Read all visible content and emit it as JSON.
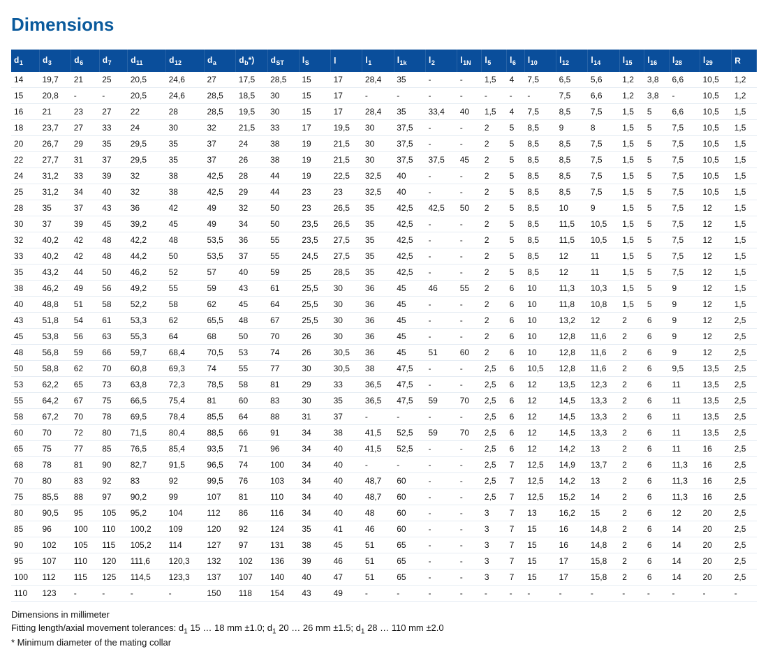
{
  "title": "Dimensions",
  "table": {
    "columns": [
      {
        "base": "d",
        "sub": "1",
        "suffix": ""
      },
      {
        "base": "d",
        "sub": "3",
        "suffix": ""
      },
      {
        "base": "d",
        "sub": "6",
        "suffix": ""
      },
      {
        "base": "d",
        "sub": "7",
        "suffix": ""
      },
      {
        "base": "d",
        "sub": "11",
        "suffix": ""
      },
      {
        "base": "d",
        "sub": "12",
        "suffix": ""
      },
      {
        "base": "d",
        "sub": "a",
        "suffix": ""
      },
      {
        "base": "d",
        "sub": "b",
        "suffix": "*)"
      },
      {
        "base": "d",
        "sub": "ST",
        "suffix": ""
      },
      {
        "base": "l",
        "sub": "S",
        "suffix": ""
      },
      {
        "base": "l",
        "sub": "",
        "suffix": ""
      },
      {
        "base": "l",
        "sub": "1",
        "suffix": ""
      },
      {
        "base": "l",
        "sub": "1k",
        "suffix": ""
      },
      {
        "base": "l",
        "sub": "2",
        "suffix": ""
      },
      {
        "base": "l",
        "sub": "1N",
        "suffix": ""
      },
      {
        "base": "l",
        "sub": "5",
        "suffix": ""
      },
      {
        "base": "l",
        "sub": "6",
        "suffix": ""
      },
      {
        "base": "l",
        "sub": "10",
        "suffix": ""
      },
      {
        "base": "l",
        "sub": "12",
        "suffix": ""
      },
      {
        "base": "l",
        "sub": "14",
        "suffix": ""
      },
      {
        "base": "l",
        "sub": "15",
        "suffix": ""
      },
      {
        "base": "l",
        "sub": "16",
        "suffix": ""
      },
      {
        "base": "l",
        "sub": "28",
        "suffix": ""
      },
      {
        "base": "l",
        "sub": "29",
        "suffix": ""
      },
      {
        "base": "R",
        "sub": "",
        "suffix": ""
      }
    ],
    "rows": [
      [
        "14",
        "19,7",
        "21",
        "25",
        "20,5",
        "24,6",
        "27",
        "17,5",
        "28,5",
        "15",
        "17",
        "28,4",
        "35",
        "-",
        "-",
        "1,5",
        "4",
        "7,5",
        "6,5",
        "5,6",
        "1,2",
        "3,8",
        "6,6",
        "10,5",
        "1,2"
      ],
      [
        "15",
        "20,8",
        "-",
        "-",
        "20,5",
        "24,6",
        "28,5",
        "18,5",
        "30",
        "15",
        "17",
        "-",
        "-",
        "-",
        "-",
        "-",
        "-",
        "-",
        "7,5",
        "6,6",
        "1,2",
        "3,8",
        "-",
        "10,5",
        "1,2"
      ],
      [
        "16",
        "21",
        "23",
        "27",
        "22",
        "28",
        "28,5",
        "19,5",
        "30",
        "15",
        "17",
        "28,4",
        "35",
        "33,4",
        "40",
        "1,5",
        "4",
        "7,5",
        "8,5",
        "7,5",
        "1,5",
        "5",
        "6,6",
        "10,5",
        "1,5"
      ],
      [
        "18",
        "23,7",
        "27",
        "33",
        "24",
        "30",
        "32",
        "21,5",
        "33",
        "17",
        "19,5",
        "30",
        "37,5",
        "-",
        "-",
        "2",
        "5",
        "8,5",
        "9",
        "8",
        "1,5",
        "5",
        "7,5",
        "10,5",
        "1,5"
      ],
      [
        "20",
        "26,7",
        "29",
        "35",
        "29,5",
        "35",
        "37",
        "24",
        "38",
        "19",
        "21,5",
        "30",
        "37,5",
        "-",
        "-",
        "2",
        "5",
        "8,5",
        "8,5",
        "7,5",
        "1,5",
        "5",
        "7,5",
        "10,5",
        "1,5"
      ],
      [
        "22",
        "27,7",
        "31",
        "37",
        "29,5",
        "35",
        "37",
        "26",
        "38",
        "19",
        "21,5",
        "30",
        "37,5",
        "37,5",
        "45",
        "2",
        "5",
        "8,5",
        "8,5",
        "7,5",
        "1,5",
        "5",
        "7,5",
        "10,5",
        "1,5"
      ],
      [
        "24",
        "31,2",
        "33",
        "39",
        "32",
        "38",
        "42,5",
        "28",
        "44",
        "19",
        "22,5",
        "32,5",
        "40",
        "-",
        "-",
        "2",
        "5",
        "8,5",
        "8,5",
        "7,5",
        "1,5",
        "5",
        "7,5",
        "10,5",
        "1,5"
      ],
      [
        "25",
        "31,2",
        "34",
        "40",
        "32",
        "38",
        "42,5",
        "29",
        "44",
        "23",
        "23",
        "32,5",
        "40",
        "-",
        "-",
        "2",
        "5",
        "8,5",
        "8,5",
        "7,5",
        "1,5",
        "5",
        "7,5",
        "10,5",
        "1,5"
      ],
      [
        "28",
        "35",
        "37",
        "43",
        "36",
        "42",
        "49",
        "32",
        "50",
        "23",
        "26,5",
        "35",
        "42,5",
        "42,5",
        "50",
        "2",
        "5",
        "8,5",
        "10",
        "9",
        "1,5",
        "5",
        "7,5",
        "12",
        "1,5"
      ],
      [
        "30",
        "37",
        "39",
        "45",
        "39,2",
        "45",
        "49",
        "34",
        "50",
        "23,5",
        "26,5",
        "35",
        "42,5",
        "-",
        "-",
        "2",
        "5",
        "8,5",
        "11,5",
        "10,5",
        "1,5",
        "5",
        "7,5",
        "12",
        "1,5"
      ],
      [
        "32",
        "40,2",
        "42",
        "48",
        "42,2",
        "48",
        "53,5",
        "36",
        "55",
        "23,5",
        "27,5",
        "35",
        "42,5",
        "-",
        "-",
        "2",
        "5",
        "8,5",
        "11,5",
        "10,5",
        "1,5",
        "5",
        "7,5",
        "12",
        "1,5"
      ],
      [
        "33",
        "40,2",
        "42",
        "48",
        "44,2",
        "50",
        "53,5",
        "37",
        "55",
        "24,5",
        "27,5",
        "35",
        "42,5",
        "-",
        "-",
        "2",
        "5",
        "8,5",
        "12",
        "11",
        "1,5",
        "5",
        "7,5",
        "12",
        "1,5"
      ],
      [
        "35",
        "43,2",
        "44",
        "50",
        "46,2",
        "52",
        "57",
        "40",
        "59",
        "25",
        "28,5",
        "35",
        "42,5",
        "-",
        "-",
        "2",
        "5",
        "8,5",
        "12",
        "11",
        "1,5",
        "5",
        "7,5",
        "12",
        "1,5"
      ],
      [
        "38",
        "46,2",
        "49",
        "56",
        "49,2",
        "55",
        "59",
        "43",
        "61",
        "25,5",
        "30",
        "36",
        "45",
        "46",
        "55",
        "2",
        "6",
        "10",
        "11,3",
        "10,3",
        "1,5",
        "5",
        "9",
        "12",
        "1,5"
      ],
      [
        "40",
        "48,8",
        "51",
        "58",
        "52,2",
        "58",
        "62",
        "45",
        "64",
        "25,5",
        "30",
        "36",
        "45",
        "-",
        "-",
        "2",
        "6",
        "10",
        "11,8",
        "10,8",
        "1,5",
        "5",
        "9",
        "12",
        "1,5"
      ],
      [
        "43",
        "51,8",
        "54",
        "61",
        "53,3",
        "62",
        "65,5",
        "48",
        "67",
        "25,5",
        "30",
        "36",
        "45",
        "-",
        "-",
        "2",
        "6",
        "10",
        "13,2",
        "12",
        "2",
        "6",
        "9",
        "12",
        "2,5"
      ],
      [
        "45",
        "53,8",
        "56",
        "63",
        "55,3",
        "64",
        "68",
        "50",
        "70",
        "26",
        "30",
        "36",
        "45",
        "-",
        "-",
        "2",
        "6",
        "10",
        "12,8",
        "11,6",
        "2",
        "6",
        "9",
        "12",
        "2,5"
      ],
      [
        "48",
        "56,8",
        "59",
        "66",
        "59,7",
        "68,4",
        "70,5",
        "53",
        "74",
        "26",
        "30,5",
        "36",
        "45",
        "51",
        "60",
        "2",
        "6",
        "10",
        "12,8",
        "11,6",
        "2",
        "6",
        "9",
        "12",
        "2,5"
      ],
      [
        "50",
        "58,8",
        "62",
        "70",
        "60,8",
        "69,3",
        "74",
        "55",
        "77",
        "30",
        "30,5",
        "38",
        "47,5",
        "-",
        "-",
        "2,5",
        "6",
        "10,5",
        "12,8",
        "11,6",
        "2",
        "6",
        "9,5",
        "13,5",
        "2,5"
      ],
      [
        "53",
        "62,2",
        "65",
        "73",
        "63,8",
        "72,3",
        "78,5",
        "58",
        "81",
        "29",
        "33",
        "36,5",
        "47,5",
        "-",
        "-",
        "2,5",
        "6",
        "12",
        "13,5",
        "12,3",
        "2",
        "6",
        "11",
        "13,5",
        "2,5"
      ],
      [
        "55",
        "64,2",
        "67",
        "75",
        "66,5",
        "75,4",
        "81",
        "60",
        "83",
        "30",
        "35",
        "36,5",
        "47,5",
        "59",
        "70",
        "2,5",
        "6",
        "12",
        "14,5",
        "13,3",
        "2",
        "6",
        "11",
        "13,5",
        "2,5"
      ],
      [
        "58",
        "67,2",
        "70",
        "78",
        "69,5",
        "78,4",
        "85,5",
        "64",
        "88",
        "31",
        "37",
        "-",
        "-",
        "-",
        "-",
        "2,5",
        "6",
        "12",
        "14,5",
        "13,3",
        "2",
        "6",
        "11",
        "13,5",
        "2,5"
      ],
      [
        "60",
        "70",
        "72",
        "80",
        "71,5",
        "80,4",
        "88,5",
        "66",
        "91",
        "34",
        "38",
        "41,5",
        "52,5",
        "59",
        "70",
        "2,5",
        "6",
        "12",
        "14,5",
        "13,3",
        "2",
        "6",
        "11",
        "13,5",
        "2,5"
      ],
      [
        "65",
        "75",
        "77",
        "85",
        "76,5",
        "85,4",
        "93,5",
        "71",
        "96",
        "34",
        "40",
        "41,5",
        "52,5",
        "-",
        "-",
        "2,5",
        "6",
        "12",
        "14,2",
        "13",
        "2",
        "6",
        "11",
        "16",
        "2,5"
      ],
      [
        "68",
        "78",
        "81",
        "90",
        "82,7",
        "91,5",
        "96,5",
        "74",
        "100",
        "34",
        "40",
        "-",
        "-",
        "-",
        "-",
        "2,5",
        "7",
        "12,5",
        "14,9",
        "13,7",
        "2",
        "6",
        "11,3",
        "16",
        "2,5"
      ],
      [
        "70",
        "80",
        "83",
        "92",
        "83",
        "92",
        "99,5",
        "76",
        "103",
        "34",
        "40",
        "48,7",
        "60",
        "-",
        "-",
        "2,5",
        "7",
        "12,5",
        "14,2",
        "13",
        "2",
        "6",
        "11,3",
        "16",
        "2,5"
      ],
      [
        "75",
        "85,5",
        "88",
        "97",
        "90,2",
        "99",
        "107",
        "81",
        "110",
        "34",
        "40",
        "48,7",
        "60",
        "-",
        "-",
        "2,5",
        "7",
        "12,5",
        "15,2",
        "14",
        "2",
        "6",
        "11,3",
        "16",
        "2,5"
      ],
      [
        "80",
        "90,5",
        "95",
        "105",
        "95,2",
        "104",
        "112",
        "86",
        "116",
        "34",
        "40",
        "48",
        "60",
        "-",
        "-",
        "3",
        "7",
        "13",
        "16,2",
        "15",
        "2",
        "6",
        "12",
        "20",
        "2,5"
      ],
      [
        "85",
        "96",
        "100",
        "110",
        "100,2",
        "109",
        "120",
        "92",
        "124",
        "35",
        "41",
        "46",
        "60",
        "-",
        "-",
        "3",
        "7",
        "15",
        "16",
        "14,8",
        "2",
        "6",
        "14",
        "20",
        "2,5"
      ],
      [
        "90",
        "102",
        "105",
        "115",
        "105,2",
        "114",
        "127",
        "97",
        "131",
        "38",
        "45",
        "51",
        "65",
        "-",
        "-",
        "3",
        "7",
        "15",
        "16",
        "14,8",
        "2",
        "6",
        "14",
        "20",
        "2,5"
      ],
      [
        "95",
        "107",
        "110",
        "120",
        "111,6",
        "120,3",
        "132",
        "102",
        "136",
        "39",
        "46",
        "51",
        "65",
        "-",
        "-",
        "3",
        "7",
        "15",
        "17",
        "15,8",
        "2",
        "6",
        "14",
        "20",
        "2,5"
      ],
      [
        "100",
        "112",
        "115",
        "125",
        "114,5",
        "123,3",
        "137",
        "107",
        "140",
        "40",
        "47",
        "51",
        "65",
        "-",
        "-",
        "3",
        "7",
        "15",
        "17",
        "15,8",
        "2",
        "6",
        "14",
        "20",
        "2,5"
      ],
      [
        "110",
        "123",
        "-",
        "-",
        "-",
        "-",
        "150",
        "118",
        "154",
        "43",
        "49",
        "-",
        "-",
        "-",
        "-",
        "-",
        "-",
        "-",
        "-",
        "-",
        "-",
        "-",
        "-",
        "-",
        "-"
      ]
    ]
  },
  "footnotes": [
    "Dimensions in millimeter",
    "Fitting length/axial movement tolerances: d_1 15 … 18 mm ±1.0; d_1 20 … 26 mm ±1.5; d_1 28 … 110 mm ±2.0",
    "* Minimum diameter of the mating collar"
  ],
  "style": {
    "header_bg": "#0a4e9b",
    "header_fg": "#ffffff",
    "row_border": "#e5ecf3",
    "title_color": "#0a5a9c",
    "font_size_body": 12,
    "font_size_title": 26
  }
}
